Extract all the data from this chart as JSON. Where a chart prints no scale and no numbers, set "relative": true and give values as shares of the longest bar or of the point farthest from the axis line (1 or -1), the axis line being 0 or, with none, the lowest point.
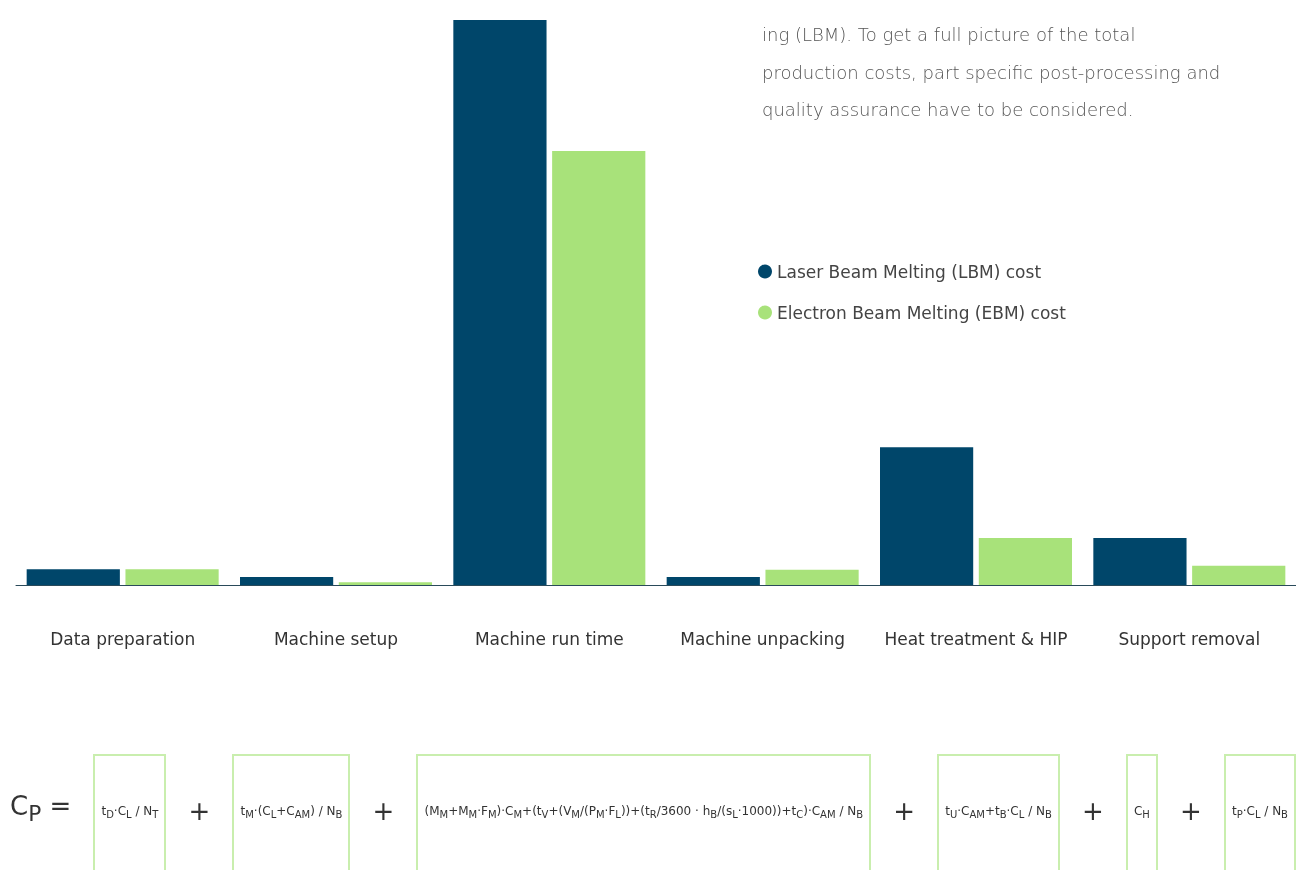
{
  "chart_data": {
    "type": "bar",
    "relative": true,
    "categories": [
      "Data preparation",
      "Machine setup",
      "Machine run time",
      "Machine unpacking",
      "Heat treatment & HIP",
      "Support removal"
    ],
    "series": [
      {
        "name": "Laser Beam Melting (LBM) cost",
        "color": "#00466a",
        "values": [
          0.028,
          0.014,
          1,
          0.014,
          0.244,
          0.083
        ]
      },
      {
        "name": "Electron Beam Melting (EBM) cost",
        "color": "#a8e27a",
        "values": [
          0.028,
          0.005,
          0.768,
          0.027,
          0.083,
          0.034
        ]
      }
    ],
    "legend": "top right",
    "annotations": [
      "ing (LBM). To get a full picture of the total production costs, part specific post-processing and quality assurance have to be considered.",
      "C$_{P}$ =",
      "t$_{D}$·C$_{L}$ / N$_{T}$",
      "+",
      "t$_{M}$·(C$_{L}$+C$_{AM}$) / N$_{B}$",
      "+",
      "(M$_{M}$+M$_{M}$·F$_{M}$)·C$_{M}$+(t$_{V}$+(V$_{M}$/(P$_{M}$·F$_{L}$))+(t$_{R}$/3600 · h$_{B}$/(s$_{L}$·1000))+t$_{C}$)·C$_{AM}$ / N$_{B}$",
      "+",
      "t$_{U}$·C$_{AM}$+t$_{B}$·C$_{L}$ / N$_{B}$",
      "+",
      "C$_{H}$",
      "+",
      "t$_{P}$·C$_{L}$ / N$_{B}$"
    ]
  }
}
